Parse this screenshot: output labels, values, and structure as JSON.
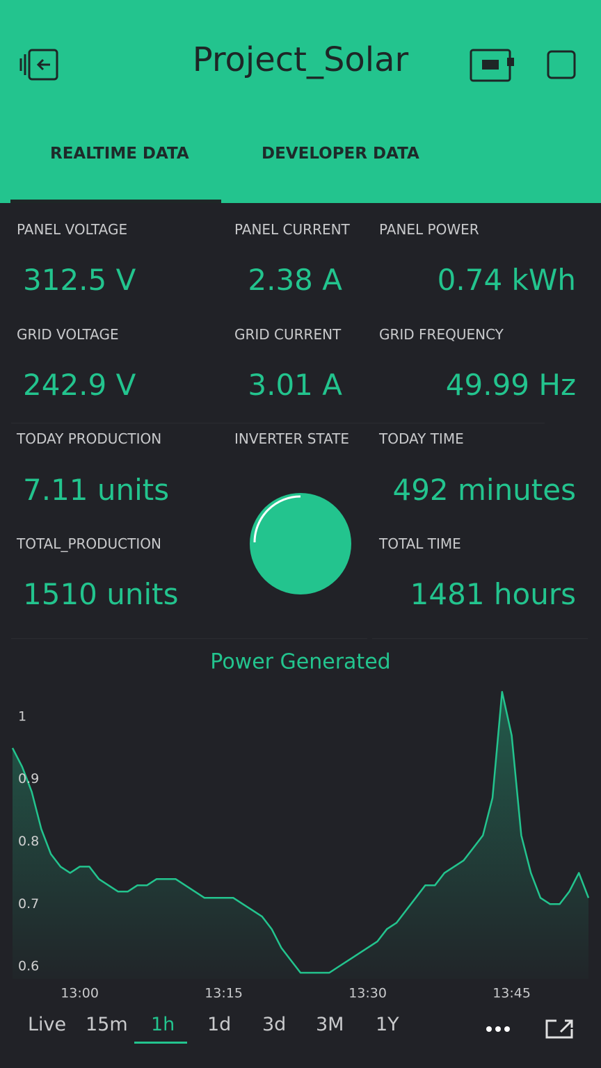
{
  "header": {
    "title": "Project_Solar",
    "tabs": [
      "REALTIME DATA",
      "DEVELOPER DATA"
    ]
  },
  "widgets": [
    {
      "label": "PANEL VOLTAGE",
      "value": "312.5 V"
    },
    {
      "label": "PANEL CURRENT",
      "value": "2.38 A"
    },
    {
      "label": "PANEL POWER",
      "value": "0.74 kWh"
    },
    {
      "label": "GRID VOLTAGE",
      "value": "242.9 V"
    },
    {
      "label": "GRID CURRENT",
      "value": "3.01 A"
    },
    {
      "label": "GRID FREQUENCY",
      "value": "49.99 Hz"
    },
    {
      "label": "TODAY PRODUCTION",
      "value": "7.11 units"
    },
    {
      "label": "INVERTER STATE"
    },
    {
      "label": "TODAY TIME",
      "value": "492 minutes"
    },
    {
      "label": "TOTAL_PRODUCTION",
      "value": "1510 units"
    },
    {
      "label": "TOTAL TIME",
      "value": "1481  hours"
    }
  ],
  "chart_data": {
    "type": "line",
    "title": "Power Generated",
    "color": "#23c48e",
    "x": [
      "12:53",
      "12:54",
      "12:55",
      "12:56",
      "12:57",
      "12:58",
      "12:59",
      "13:00",
      "13:01",
      "13:02",
      "13:03",
      "13:04",
      "13:05",
      "13:06",
      "13:07",
      "13:08",
      "13:09",
      "13:10",
      "13:11",
      "13:12",
      "13:13",
      "13:14",
      "13:15",
      "13:16",
      "13:17",
      "13:18",
      "13:19",
      "13:20",
      "13:21",
      "13:22",
      "13:23",
      "13:24",
      "13:25",
      "13:26",
      "13:27",
      "13:28",
      "13:29",
      "13:30",
      "13:31",
      "13:32",
      "13:33",
      "13:34",
      "13:35",
      "13:36",
      "13:37",
      "13:38",
      "13:39",
      "13:40",
      "13:41",
      "13:42",
      "13:43",
      "13:44",
      "13:45",
      "13:46",
      "13:47",
      "13:48",
      "13:49",
      "13:50",
      "13:51",
      "13:52",
      "13:53"
    ],
    "values": [
      0.95,
      0.92,
      0.88,
      0.82,
      0.78,
      0.76,
      0.75,
      0.76,
      0.76,
      0.74,
      0.73,
      0.72,
      0.72,
      0.73,
      0.73,
      0.74,
      0.74,
      0.74,
      0.73,
      0.72,
      0.71,
      0.71,
      0.71,
      0.71,
      0.7,
      0.69,
      0.68,
      0.66,
      0.63,
      0.61,
      0.59,
      0.59,
      0.59,
      0.59,
      0.6,
      0.61,
      0.62,
      0.63,
      0.64,
      0.66,
      0.67,
      0.69,
      0.71,
      0.73,
      0.73,
      0.75,
      0.76,
      0.77,
      0.79,
      0.81,
      0.87,
      1.04,
      0.97,
      0.81,
      0.75,
      0.71,
      0.7,
      0.7,
      0.72,
      0.75,
      0.71
    ],
    "xlim": [
      "12:53",
      "13:53"
    ],
    "xticks": [
      "13:00",
      "13:15",
      "13:30",
      "13:45"
    ],
    "ylim": [
      0.58,
      1.04
    ],
    "yticks": [
      0.6,
      0.7,
      0.8,
      0.9,
      1
    ]
  },
  "ranges": {
    "options": [
      "Live",
      "15m",
      "1h",
      "1d",
      "3d",
      "3M",
      "1Y"
    ],
    "active": "1h"
  }
}
